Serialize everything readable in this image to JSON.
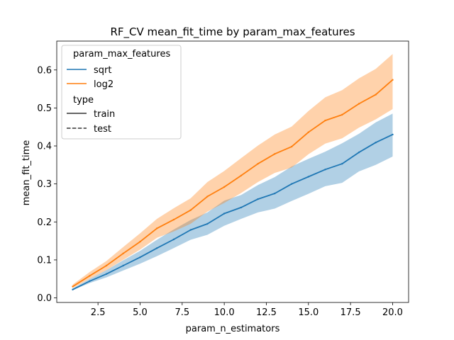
{
  "chart_data": {
    "type": "line",
    "title": "RF_CV mean_fit_time by param_max_features",
    "xlabel": "param_n_estimators",
    "ylabel": "mean_fit_time",
    "xlim": [
      0.05,
      20.95
    ],
    "ylim": [
      -0.012,
      0.676
    ],
    "xticks": [
      2.5,
      5.0,
      7.5,
      10.0,
      12.5,
      15.0,
      17.5,
      20.0
    ],
    "xtick_labels": [
      "2.5",
      "5.0",
      "7.5",
      "10.0",
      "12.5",
      "15.0",
      "17.5",
      "20.0"
    ],
    "yticks": [
      0.0,
      0.1,
      0.2,
      0.3,
      0.4,
      0.5,
      0.6
    ],
    "ytick_labels": [
      "0.0",
      "0.1",
      "0.2",
      "0.3",
      "0.4",
      "0.5",
      "0.6"
    ],
    "grid": false,
    "legend_position": "top-left",
    "legend": {
      "hue_title": "param_max_features",
      "style_title": "type",
      "hue_entries": [
        {
          "label": "sqrt",
          "color": "#1f77b4"
        },
        {
          "label": "log2",
          "color": "#ff7f0e"
        }
      ],
      "style_entries": [
        {
          "label": "train",
          "dash": "solid"
        },
        {
          "label": "test",
          "dash": "dashed"
        }
      ]
    },
    "x": [
      1,
      2,
      3,
      4,
      5,
      6,
      7,
      8,
      9,
      10,
      11,
      12,
      13,
      14,
      15,
      16,
      17,
      18,
      19,
      20
    ],
    "series": [
      {
        "name": "sqrt",
        "color": "#1f77b4",
        "values": [
          0.022,
          0.044,
          0.063,
          0.085,
          0.107,
          0.131,
          0.154,
          0.179,
          0.195,
          0.222,
          0.238,
          0.26,
          0.275,
          0.3,
          0.319,
          0.338,
          0.353,
          0.383,
          0.409,
          0.43
        ],
        "lower": [
          0.02,
          0.039,
          0.054,
          0.072,
          0.09,
          0.11,
          0.131,
          0.153,
          0.166,
          0.19,
          0.208,
          0.225,
          0.235,
          0.255,
          0.274,
          0.294,
          0.303,
          0.333,
          0.35,
          0.372
        ],
        "upper": [
          0.025,
          0.05,
          0.073,
          0.099,
          0.124,
          0.153,
          0.18,
          0.205,
          0.225,
          0.256,
          0.271,
          0.297,
          0.318,
          0.346,
          0.366,
          0.385,
          0.407,
          0.432,
          0.462,
          0.485
        ]
      },
      {
        "name": "log2",
        "color": "#ff7f0e",
        "values": [
          0.03,
          0.058,
          0.085,
          0.117,
          0.148,
          0.183,
          0.206,
          0.231,
          0.267,
          0.292,
          0.322,
          0.353,
          0.379,
          0.398,
          0.436,
          0.467,
          0.482,
          0.511,
          0.535,
          0.574
        ],
        "lower": [
          0.026,
          0.05,
          0.073,
          0.1,
          0.127,
          0.158,
          0.175,
          0.195,
          0.227,
          0.25,
          0.276,
          0.305,
          0.329,
          0.343,
          0.378,
          0.406,
          0.42,
          0.448,
          0.47,
          0.497
        ],
        "upper": [
          0.035,
          0.068,
          0.097,
          0.134,
          0.17,
          0.208,
          0.236,
          0.262,
          0.305,
          0.334,
          0.368,
          0.401,
          0.43,
          0.451,
          0.492,
          0.528,
          0.547,
          0.578,
          0.603,
          0.642
        ]
      }
    ]
  }
}
